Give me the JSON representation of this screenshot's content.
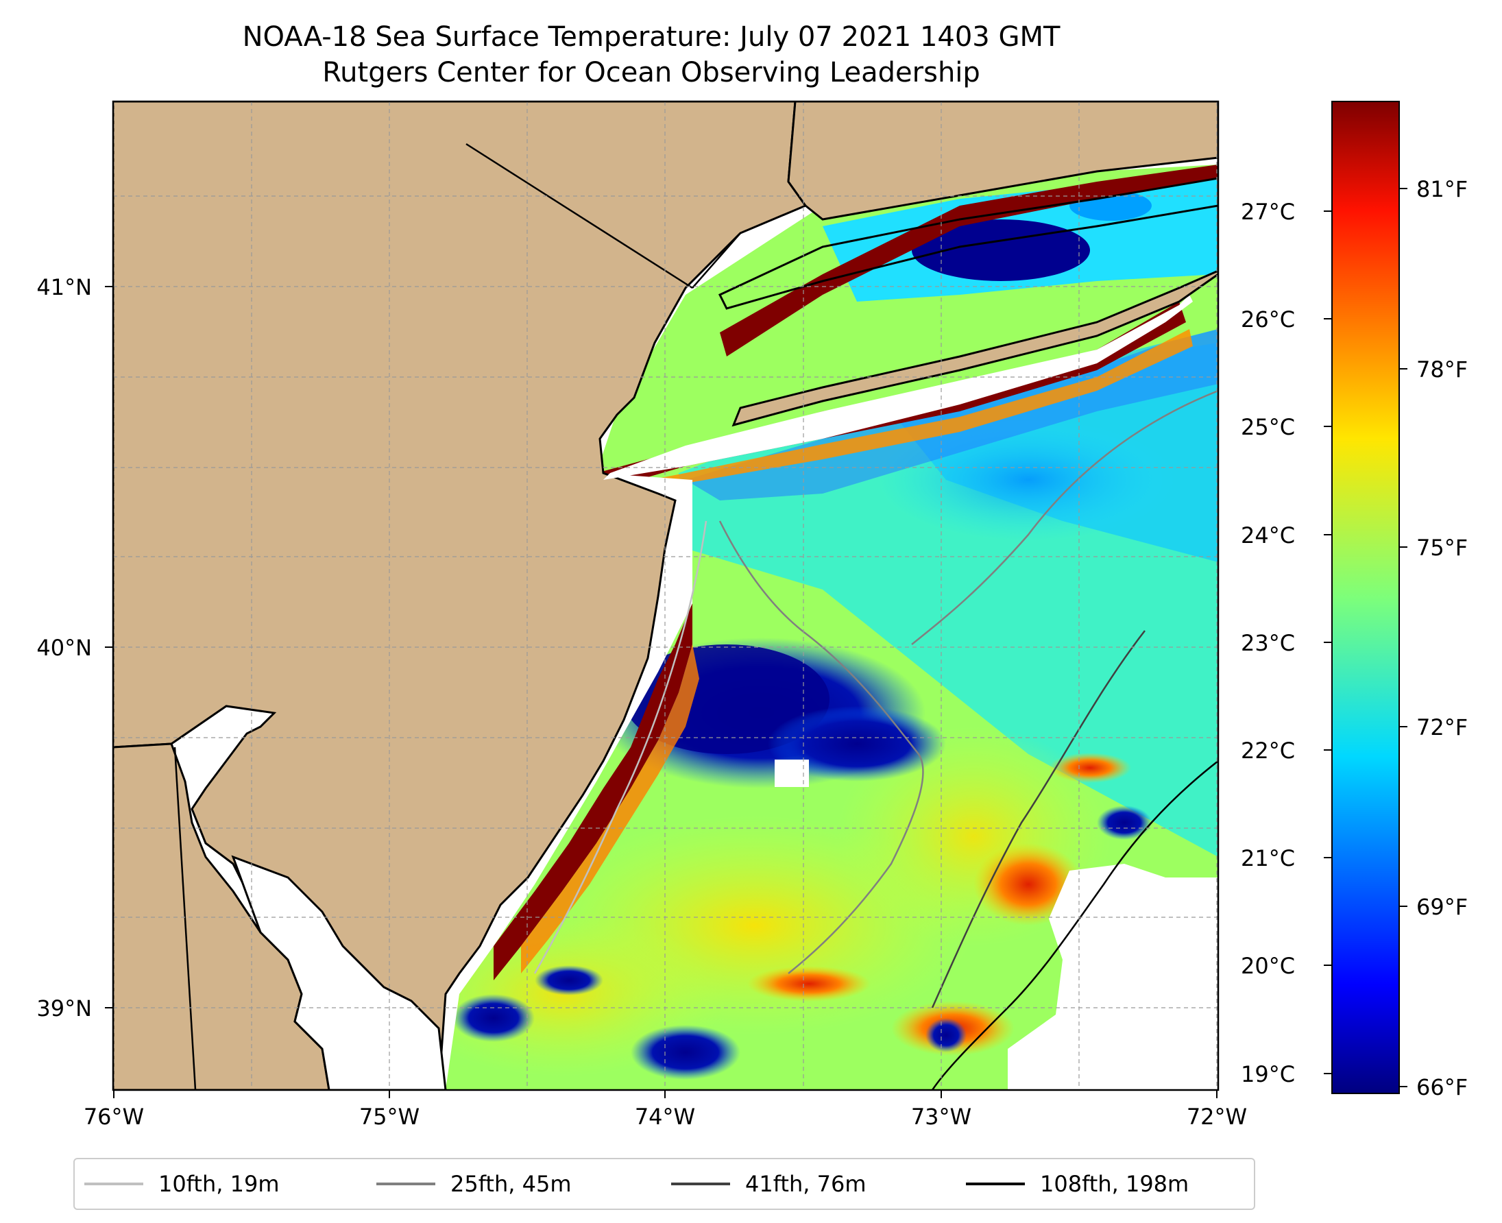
{
  "title": {
    "line1": "NOAA-18 Sea Surface Temperature: July 07 2021 1403 GMT",
    "line2": "Rutgers Center for Ocean Observing Leadership"
  },
  "map": {
    "lon_range": [
      -76,
      -72
    ],
    "lat_range": [
      38.75,
      41.5
    ],
    "lon_ticks": [
      "76°W",
      "75°W",
      "74°W",
      "73°W",
      "72°W"
    ],
    "lat_ticks": [
      "41°N",
      "40°N",
      "39°N"
    ],
    "land_color": "#D2B48C",
    "no_data_color": "#ffffff",
    "grid": true
  },
  "colorbar": {
    "colormap": "jet",
    "range_c": [
      18.9,
      27.8
    ],
    "celsius_ticks": [
      "27°C",
      "26°C",
      "25°C",
      "24°C",
      "23°C",
      "22°C",
      "21°C",
      "20°C",
      "19°C"
    ],
    "fahrenheit_ticks": [
      "81°F",
      "78°F",
      "75°F",
      "72°F",
      "69°F",
      "66°F"
    ]
  },
  "legend": {
    "items": [
      {
        "label": "10fth, 19m",
        "color": "#c0c0c0"
      },
      {
        "label": "25fth, 45m",
        "color": "#808080"
      },
      {
        "label": "41fth, 76m",
        "color": "#404040"
      },
      {
        "label": "108fth, 198m",
        "color": "#000000"
      }
    ]
  }
}
